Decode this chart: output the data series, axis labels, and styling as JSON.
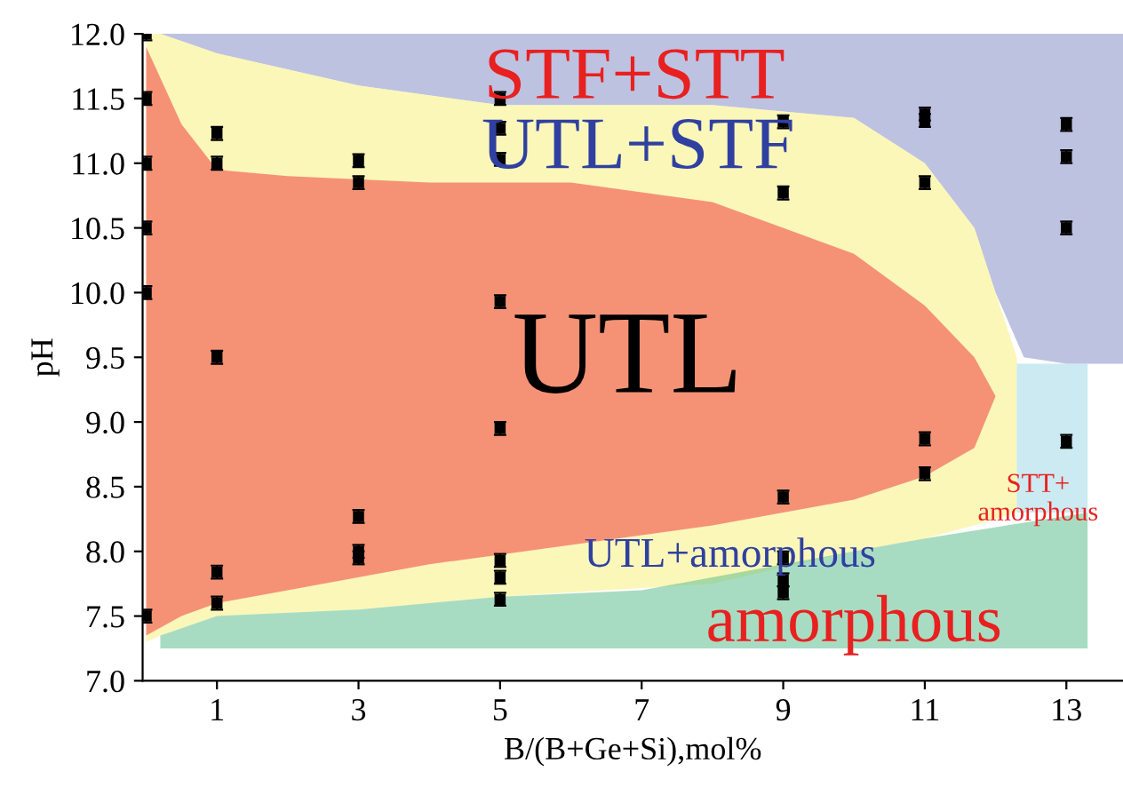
{
  "chart_data": {
    "type": "scatter",
    "xlabel": "B/(B+Ge+Si),mol%",
    "ylabel": "pH",
    "xlim": [
      -0.05,
      13.8
    ],
    "ylim": [
      7.0,
      12.0
    ],
    "xticks": [
      1,
      3,
      5,
      7,
      9,
      11,
      13
    ],
    "yticks": [
      {
        "value": 7.0,
        "label": "7.0"
      },
      7.5,
      {
        "value": 8.0,
        "label": "8.0"
      },
      8.5,
      {
        "value": 9.0,
        "label": "9.0"
      },
      9.5,
      {
        "value": 10.0,
        "label": "10.0"
      },
      10.5,
      {
        "value": 11.0,
        "label": "11.0"
      },
      11.5,
      {
        "value": 12.0,
        "label": "12.0"
      }
    ],
    "grid": false,
    "legend": false,
    "series": [
      {
        "type": "area",
        "color": "#8890c8",
        "x": [
          0.2,
          1,
          3,
          5,
          8,
          10,
          11,
          11.7,
          12,
          12.4,
          13,
          13.8,
          13.8,
          0.2
        ],
        "values": [
          12,
          11.85,
          11.6,
          11.45,
          11.45,
          11.35,
          11.0,
          10.5,
          10.0,
          9.5,
          9.45,
          9.45,
          12,
          12
        ]
      },
      {
        "type": "area",
        "color": "#f8f080",
        "x": [
          0,
          0.2,
          1,
          3,
          5,
          8,
          10,
          11,
          11.7,
          12,
          12.3,
          12.3,
          12,
          11.7,
          11,
          10,
          8,
          5,
          3,
          1,
          0.2,
          0
        ],
        "values": [
          12,
          12,
          11.85,
          11.6,
          11.45,
          11.45,
          11.35,
          11.0,
          10.5,
          10.0,
          9.5,
          8.3,
          8.25,
          8.2,
          8.1,
          8.0,
          7.75,
          7.65,
          7.55,
          7.5,
          7.35,
          7.3
        ]
      },
      {
        "type": "area",
        "color": "#60c090",
        "x": [
          0.2,
          1,
          3,
          5,
          7,
          9,
          11,
          13.3,
          13.3,
          0.2
        ],
        "values": [
          7.35,
          7.5,
          7.55,
          7.65,
          7.7,
          7.9,
          8.1,
          8.3,
          7.25,
          7.25
        ]
      },
      {
        "type": "area",
        "color": "#a0d8e8",
        "x": [
          12.3,
          13.3,
          13.3,
          12.3
        ],
        "values": [
          9.45,
          9.45,
          8.3,
          8.3
        ]
      },
      {
        "type": "area",
        "color": "#f04040",
        "x": [
          0,
          0.5,
          1,
          2,
          4,
          6,
          8,
          10,
          11,
          11.7,
          12,
          11.7,
          11,
          10,
          8,
          6,
          4,
          2,
          1,
          0.5,
          0
        ],
        "values": [
          11.9,
          11.3,
          10.95,
          10.9,
          10.85,
          10.85,
          10.7,
          10.3,
          9.9,
          9.5,
          9.2,
          8.8,
          8.58,
          8.4,
          8.2,
          8.05,
          7.9,
          7.7,
          7.6,
          7.5,
          7.35
        ]
      },
      {
        "marker": "square",
        "color": "#000000",
        "x": [
          0,
          0,
          0,
          0,
          0,
          0,
          1,
          1,
          1,
          1,
          1,
          3,
          3,
          3,
          3,
          3,
          5,
          5,
          5,
          5,
          5,
          5,
          5,
          5,
          9,
          9,
          9,
          9,
          9,
          9,
          11,
          11,
          11,
          11,
          11,
          13,
          13,
          13,
          13
        ],
        "values": [
          12.0,
          11.5,
          11.0,
          10.5,
          10.0,
          7.5,
          11.23,
          11.0,
          9.5,
          7.84,
          7.6,
          11.02,
          10.85,
          8.27,
          8.0,
          7.95,
          11.5,
          11.27,
          11.03,
          9.93,
          8.95,
          7.93,
          7.8,
          7.63,
          11.32,
          10.77,
          8.42,
          7.95,
          7.78,
          7.68,
          11.38,
          11.33,
          10.85,
          8.87,
          8.6,
          11.3,
          11.05,
          10.5,
          8.85
        ],
        "errors": [
          0.05,
          0.05,
          0.05,
          0.05,
          0.05,
          0.05,
          0.05,
          0.05,
          0.05,
          0.05,
          0.05,
          0.05,
          0.05,
          0.05,
          0.05,
          0.05,
          0.05,
          0.05,
          0.05,
          0.05,
          0.05,
          0.05,
          0.05,
          0.05,
          0.05,
          0.05,
          0.05,
          0.05,
          0.05,
          0.05,
          0.05,
          0.05,
          0.05,
          0.05,
          0.05,
          0.05,
          0.05,
          0.05,
          0.05
        ]
      }
    ],
    "annotations": [
      "STF+STT",
      "UTL+STF",
      "UTL",
      "UTL+amorphous",
      "amorphous",
      "STT+\namorphous"
    ]
  }
}
